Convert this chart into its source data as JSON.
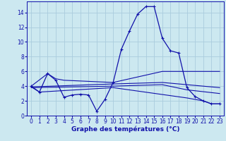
{
  "xlabel": "Graphe des températures (°C)",
  "bg_color": "#cce8f0",
  "grid_color": "#aaccdd",
  "line_color": "#1111aa",
  "xlim": [
    -0.5,
    23.5
  ],
  "ylim": [
    0,
    15.5
  ],
  "xticks": [
    0,
    1,
    2,
    3,
    4,
    5,
    6,
    7,
    8,
    9,
    10,
    11,
    12,
    13,
    14,
    15,
    16,
    17,
    18,
    19,
    20,
    21,
    22,
    23
  ],
  "yticks": [
    0,
    2,
    4,
    6,
    8,
    10,
    12,
    14
  ],
  "series": {
    "main_temp": {
      "x": [
        0,
        1,
        2,
        3,
        4,
        5,
        6,
        7,
        8,
        9,
        10,
        11,
        12,
        13,
        14,
        15,
        16,
        17,
        18,
        19,
        20,
        21,
        22,
        23
      ],
      "y": [
        4.0,
        3.2,
        5.7,
        4.8,
        2.5,
        2.8,
        2.9,
        2.8,
        0.6,
        2.2,
        4.5,
        9.0,
        11.5,
        13.8,
        14.8,
        14.8,
        10.5,
        8.8,
        8.5,
        3.8,
        2.6,
        2.0,
        1.6,
        1.6
      ]
    },
    "line_top": {
      "x": [
        0,
        2,
        3,
        4,
        10,
        16,
        23
      ],
      "y": [
        4.0,
        5.7,
        5.0,
        4.8,
        4.5,
        6.0,
        6.0
      ]
    },
    "line_mid1": {
      "x": [
        0,
        10,
        16,
        19,
        23
      ],
      "y": [
        3.9,
        4.3,
        4.5,
        4.2,
        3.8
      ]
    },
    "line_mid2": {
      "x": [
        0,
        10,
        16,
        19,
        23
      ],
      "y": [
        3.8,
        4.0,
        4.2,
        3.5,
        3.0
      ]
    },
    "line_bot": {
      "x": [
        0,
        1,
        10,
        19,
        20,
        21,
        22,
        23
      ],
      "y": [
        3.9,
        3.2,
        3.8,
        2.4,
        2.2,
        2.0,
        1.6,
        1.6
      ]
    }
  }
}
